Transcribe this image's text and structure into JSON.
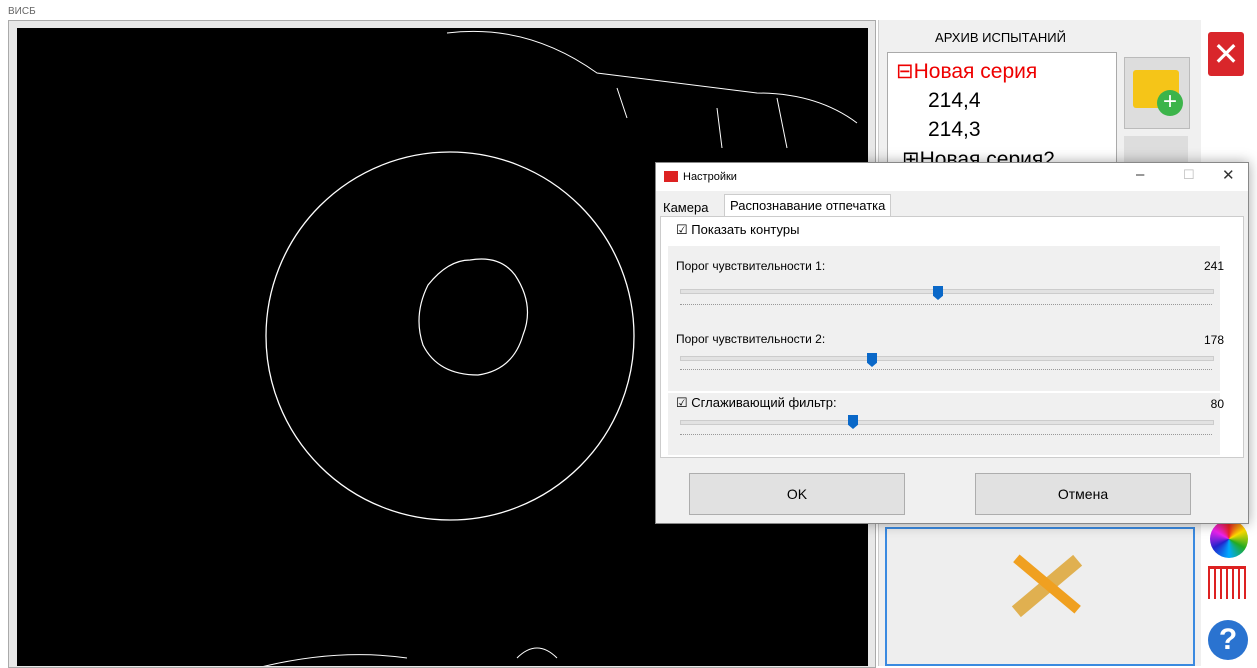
{
  "window": {
    "title": "ВИСБ"
  },
  "archive": {
    "title": "АРХИВ ИСПЫТАНИЙ",
    "tree": [
      {
        "label": "Новая серия",
        "children": [
          "214,4",
          "214,3"
        ]
      },
      {
        "label": "Новая серия2"
      }
    ]
  },
  "dialog": {
    "title": "Настройки",
    "tabs": [
      "Камера",
      "Распознавание отпечатка"
    ],
    "show_contours": "Показать контуры",
    "sliders": [
      {
        "label": "Порог чувствительности 1:",
        "value": 241
      },
      {
        "label": "Порог чувствительности 2:",
        "value": 178
      },
      {
        "label": "Сглаживающий фильтр:",
        "value": 80
      }
    ],
    "buttons": [
      "OK",
      "Отмена"
    ]
  }
}
